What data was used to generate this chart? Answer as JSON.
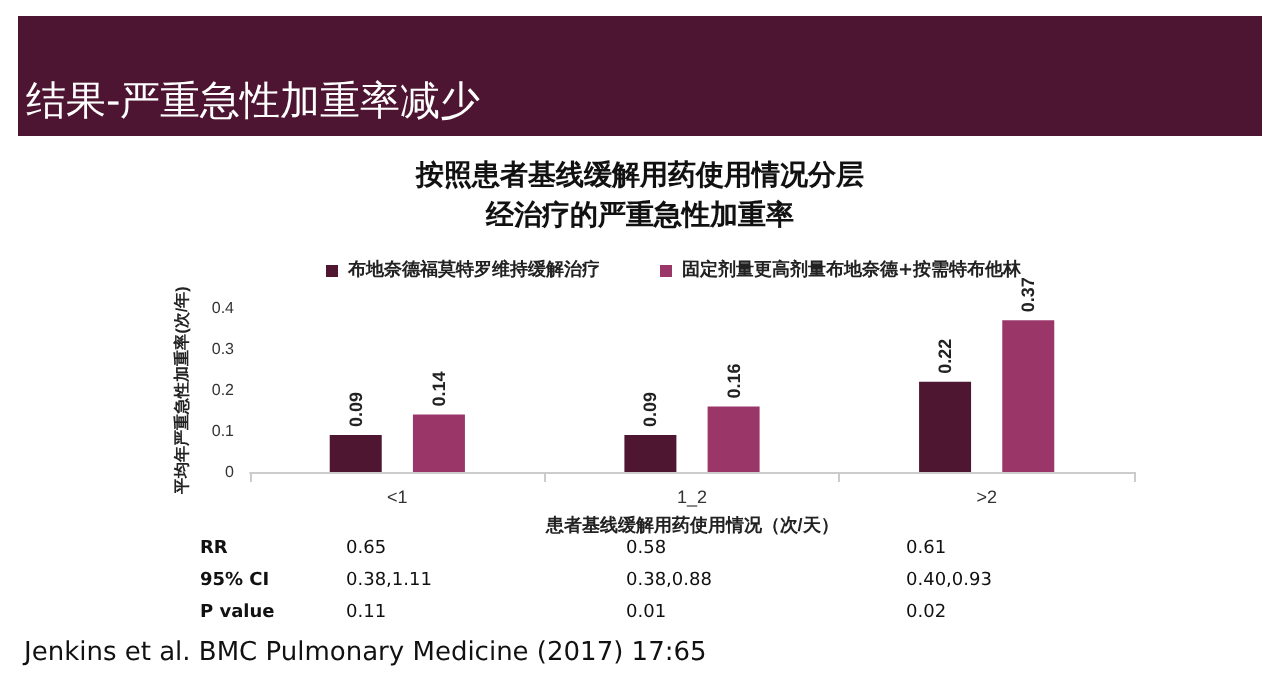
{
  "chart_data": {
    "type": "bar",
    "title": "结果-严重急性加重率减少",
    "subtitle": "按照患者基线缓解用药使用情况分层经治疗的严重急性加重率",
    "xlabel": "患者基线缓解用药使用情况（次/天）",
    "ylabel": "平均年严重急性加重率(次/年)",
    "categories": [
      "<1",
      "1_2",
      ">2"
    ],
    "series": [
      {
        "name": "布地奈德福莫特罗维持缓解治疗",
        "color": "#4e1631",
        "values": [
          0.09,
          0.09,
          0.22
        ]
      },
      {
        "name": "固定剂量更高剂量布地奈德+按需特布他林",
        "color": "#9b3768",
        "values": [
          0.14,
          0.16,
          0.37
        ]
      }
    ],
    "ylim": [
      0,
      0.4
    ],
    "yticks": [
      0,
      0.1,
      0.2,
      0.3,
      0.4
    ],
    "grid": false,
    "legend": "top left",
    "data_labels": true,
    "annotations": [
      "RR",
      "0.65",
      "0.58",
      "0.61",
      "95% CI",
      "0.38,1.11",
      "0.38,0.88",
      "0.40,0.93",
      "P value",
      "0.11",
      "0.01",
      "0.02",
      "Jenkins et al. BMC Pulmonary Medicine (2017) 17:65"
    ]
  }
}
